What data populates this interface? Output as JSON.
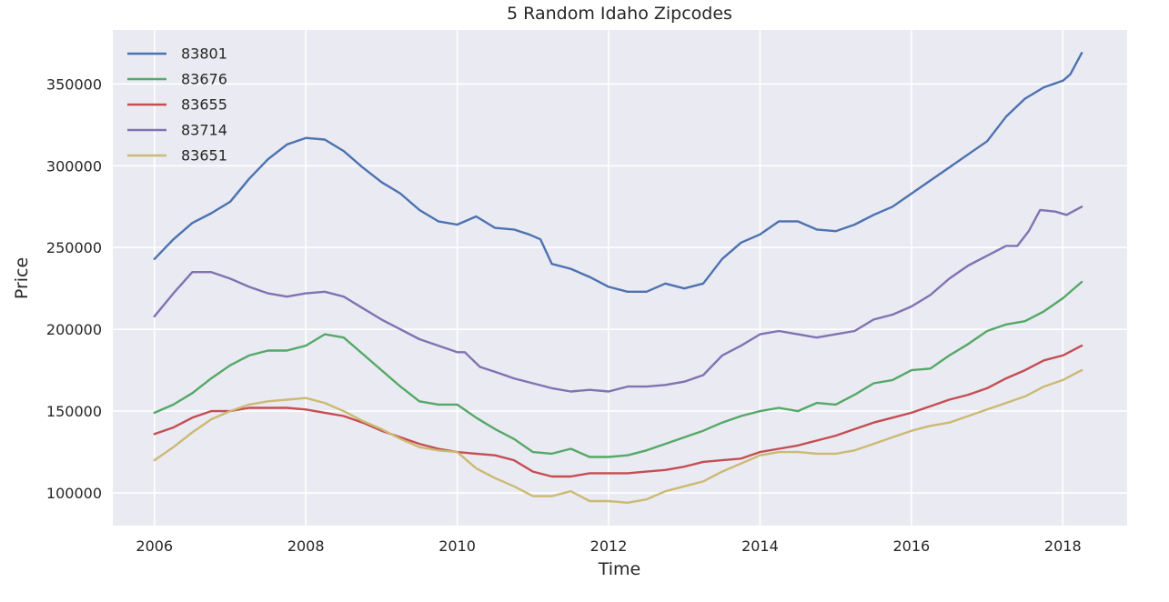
{
  "chart_data": {
    "type": "line",
    "title": "5 Random Idaho Zipcodes",
    "xlabel": "Time",
    "ylabel": "Price",
    "xlim": [
      2005.45,
      2018.85
    ],
    "ylim": [
      80000,
      383000
    ],
    "grid": true,
    "legend_position": "top-left",
    "x_ticks": [
      2006,
      2008,
      2010,
      2012,
      2014,
      2016,
      2018
    ],
    "y_ticks": [
      100000,
      150000,
      200000,
      250000,
      300000,
      350000
    ],
    "series": [
      {
        "name": "83801",
        "color": "#4c72b0",
        "points": [
          [
            2006.0,
            243000
          ],
          [
            2006.25,
            255000
          ],
          [
            2006.5,
            265000
          ],
          [
            2006.75,
            271000
          ],
          [
            2007.0,
            278000
          ],
          [
            2007.25,
            292000
          ],
          [
            2007.5,
            304000
          ],
          [
            2007.75,
            313000
          ],
          [
            2008.0,
            317000
          ],
          [
            2008.25,
            316000
          ],
          [
            2008.5,
            309000
          ],
          [
            2008.75,
            299000
          ],
          [
            2009.0,
            290000
          ],
          [
            2009.25,
            283000
          ],
          [
            2009.5,
            273000
          ],
          [
            2009.75,
            266000
          ],
          [
            2010.0,
            264000
          ],
          [
            2010.25,
            269000
          ],
          [
            2010.5,
            262000
          ],
          [
            2010.75,
            261000
          ],
          [
            2010.95,
            258000
          ],
          [
            2011.1,
            255000
          ],
          [
            2011.25,
            240000
          ],
          [
            2011.5,
            237000
          ],
          [
            2011.75,
            232000
          ],
          [
            2012.0,
            226000
          ],
          [
            2012.25,
            223000
          ],
          [
            2012.5,
            223000
          ],
          [
            2012.75,
            228000
          ],
          [
            2013.0,
            225000
          ],
          [
            2013.25,
            228000
          ],
          [
            2013.5,
            243000
          ],
          [
            2013.75,
            253000
          ],
          [
            2014.0,
            258000
          ],
          [
            2014.25,
            266000
          ],
          [
            2014.5,
            266000
          ],
          [
            2014.75,
            261000
          ],
          [
            2015.0,
            260000
          ],
          [
            2015.25,
            264000
          ],
          [
            2015.5,
            270000
          ],
          [
            2015.75,
            275000
          ],
          [
            2016.0,
            283000
          ],
          [
            2016.25,
            291000
          ],
          [
            2016.5,
            299000
          ],
          [
            2016.75,
            307000
          ],
          [
            2017.0,
            315000
          ],
          [
            2017.25,
            330000
          ],
          [
            2017.5,
            341000
          ],
          [
            2017.75,
            348000
          ],
          [
            2018.0,
            352000
          ],
          [
            2018.1,
            356000
          ],
          [
            2018.25,
            369000
          ]
        ]
      },
      {
        "name": "83676",
        "color": "#55a868",
        "points": [
          [
            2006.0,
            149000
          ],
          [
            2006.25,
            154000
          ],
          [
            2006.5,
            161000
          ],
          [
            2006.75,
            170000
          ],
          [
            2007.0,
            178000
          ],
          [
            2007.25,
            184000
          ],
          [
            2007.5,
            187000
          ],
          [
            2007.75,
            187000
          ],
          [
            2008.0,
            190000
          ],
          [
            2008.25,
            197000
          ],
          [
            2008.5,
            195000
          ],
          [
            2008.75,
            185000
          ],
          [
            2009.0,
            175000
          ],
          [
            2009.25,
            165000
          ],
          [
            2009.5,
            156000
          ],
          [
            2009.75,
            154000
          ],
          [
            2010.0,
            154000
          ],
          [
            2010.25,
            146000
          ],
          [
            2010.5,
            139000
          ],
          [
            2010.75,
            133000
          ],
          [
            2011.0,
            125000
          ],
          [
            2011.25,
            124000
          ],
          [
            2011.5,
            127000
          ],
          [
            2011.75,
            122000
          ],
          [
            2012.0,
            122000
          ],
          [
            2012.25,
            123000
          ],
          [
            2012.5,
            126000
          ],
          [
            2012.75,
            130000
          ],
          [
            2013.0,
            134000
          ],
          [
            2013.25,
            138000
          ],
          [
            2013.5,
            143000
          ],
          [
            2013.75,
            147000
          ],
          [
            2014.0,
            150000
          ],
          [
            2014.25,
            152000
          ],
          [
            2014.5,
            150000
          ],
          [
            2014.75,
            155000
          ],
          [
            2015.0,
            154000
          ],
          [
            2015.25,
            160000
          ],
          [
            2015.5,
            167000
          ],
          [
            2015.75,
            169000
          ],
          [
            2016.0,
            175000
          ],
          [
            2016.25,
            176000
          ],
          [
            2016.5,
            184000
          ],
          [
            2016.75,
            191000
          ],
          [
            2017.0,
            199000
          ],
          [
            2017.25,
            203000
          ],
          [
            2017.5,
            205000
          ],
          [
            2017.75,
            211000
          ],
          [
            2018.0,
            219000
          ],
          [
            2018.25,
            229000
          ]
        ]
      },
      {
        "name": "83655",
        "color": "#c44e52",
        "points": [
          [
            2006.0,
            136000
          ],
          [
            2006.25,
            140000
          ],
          [
            2006.5,
            146000
          ],
          [
            2006.75,
            150000
          ],
          [
            2007.0,
            150000
          ],
          [
            2007.25,
            152000
          ],
          [
            2007.5,
            152000
          ],
          [
            2007.75,
            152000
          ],
          [
            2008.0,
            151000
          ],
          [
            2008.25,
            149000
          ],
          [
            2008.5,
            147000
          ],
          [
            2008.75,
            143000
          ],
          [
            2009.0,
            138000
          ],
          [
            2009.25,
            134000
          ],
          [
            2009.5,
            130000
          ],
          [
            2009.75,
            127000
          ],
          [
            2010.0,
            125000
          ],
          [
            2010.25,
            124000
          ],
          [
            2010.5,
            123000
          ],
          [
            2010.75,
            120000
          ],
          [
            2011.0,
            113000
          ],
          [
            2011.25,
            110000
          ],
          [
            2011.5,
            110000
          ],
          [
            2011.75,
            112000
          ],
          [
            2012.0,
            112000
          ],
          [
            2012.25,
            112000
          ],
          [
            2012.5,
            113000
          ],
          [
            2012.75,
            114000
          ],
          [
            2013.0,
            116000
          ],
          [
            2013.25,
            119000
          ],
          [
            2013.5,
            120000
          ],
          [
            2013.75,
            121000
          ],
          [
            2014.0,
            125000
          ],
          [
            2014.25,
            127000
          ],
          [
            2014.5,
            129000
          ],
          [
            2014.75,
            132000
          ],
          [
            2015.0,
            135000
          ],
          [
            2015.25,
            139000
          ],
          [
            2015.5,
            143000
          ],
          [
            2015.75,
            146000
          ],
          [
            2016.0,
            149000
          ],
          [
            2016.25,
            153000
          ],
          [
            2016.5,
            157000
          ],
          [
            2016.75,
            160000
          ],
          [
            2017.0,
            164000
          ],
          [
            2017.25,
            170000
          ],
          [
            2017.5,
            175000
          ],
          [
            2017.75,
            181000
          ],
          [
            2018.0,
            184000
          ],
          [
            2018.25,
            190000
          ]
        ]
      },
      {
        "name": "83714",
        "color": "#8172b2",
        "points": [
          [
            2006.0,
            208000
          ],
          [
            2006.25,
            222000
          ],
          [
            2006.5,
            235000
          ],
          [
            2006.75,
            235000
          ],
          [
            2007.0,
            231000
          ],
          [
            2007.25,
            226000
          ],
          [
            2007.5,
            222000
          ],
          [
            2007.75,
            220000
          ],
          [
            2008.0,
            222000
          ],
          [
            2008.25,
            223000
          ],
          [
            2008.5,
            220000
          ],
          [
            2008.75,
            213000
          ],
          [
            2009.0,
            206000
          ],
          [
            2009.25,
            200000
          ],
          [
            2009.5,
            194000
          ],
          [
            2009.75,
            190000
          ],
          [
            2010.0,
            186000
          ],
          [
            2010.1,
            186000
          ],
          [
            2010.3,
            177000
          ],
          [
            2010.5,
            174000
          ],
          [
            2010.75,
            170000
          ],
          [
            2011.0,
            167000
          ],
          [
            2011.25,
            164000
          ],
          [
            2011.5,
            162000
          ],
          [
            2011.75,
            163000
          ],
          [
            2012.0,
            162000
          ],
          [
            2012.25,
            165000
          ],
          [
            2012.5,
            165000
          ],
          [
            2012.75,
            166000
          ],
          [
            2013.0,
            168000
          ],
          [
            2013.25,
            172000
          ],
          [
            2013.5,
            184000
          ],
          [
            2013.75,
            190000
          ],
          [
            2014.0,
            197000
          ],
          [
            2014.25,
            199000
          ],
          [
            2014.5,
            197000
          ],
          [
            2014.75,
            195000
          ],
          [
            2015.0,
            197000
          ],
          [
            2015.25,
            199000
          ],
          [
            2015.5,
            206000
          ],
          [
            2015.75,
            209000
          ],
          [
            2016.0,
            214000
          ],
          [
            2016.25,
            221000
          ],
          [
            2016.5,
            231000
          ],
          [
            2016.75,
            239000
          ],
          [
            2017.0,
            245000
          ],
          [
            2017.25,
            251000
          ],
          [
            2017.4,
            251000
          ],
          [
            2017.55,
            260000
          ],
          [
            2017.7,
            273000
          ],
          [
            2017.9,
            272000
          ],
          [
            2018.05,
            270000
          ],
          [
            2018.25,
            275000
          ]
        ]
      },
      {
        "name": "83651",
        "color": "#ccb974",
        "points": [
          [
            2006.0,
            120000
          ],
          [
            2006.25,
            128000
          ],
          [
            2006.5,
            137000
          ],
          [
            2006.75,
            145000
          ],
          [
            2007.0,
            150000
          ],
          [
            2007.25,
            154000
          ],
          [
            2007.5,
            156000
          ],
          [
            2007.75,
            157000
          ],
          [
            2008.0,
            158000
          ],
          [
            2008.25,
            155000
          ],
          [
            2008.5,
            150000
          ],
          [
            2008.75,
            144000
          ],
          [
            2009.0,
            139000
          ],
          [
            2009.25,
            133000
          ],
          [
            2009.5,
            128000
          ],
          [
            2009.75,
            126000
          ],
          [
            2010.0,
            125000
          ],
          [
            2010.25,
            115000
          ],
          [
            2010.5,
            109000
          ],
          [
            2010.75,
            104000
          ],
          [
            2011.0,
            98000
          ],
          [
            2011.25,
            98000
          ],
          [
            2011.5,
            101000
          ],
          [
            2011.75,
            95000
          ],
          [
            2012.0,
            95000
          ],
          [
            2012.25,
            94000
          ],
          [
            2012.5,
            96000
          ],
          [
            2012.75,
            101000
          ],
          [
            2013.0,
            104000
          ],
          [
            2013.25,
            107000
          ],
          [
            2013.5,
            113000
          ],
          [
            2013.75,
            118000
          ],
          [
            2014.0,
            123000
          ],
          [
            2014.25,
            125000
          ],
          [
            2014.5,
            125000
          ],
          [
            2014.75,
            124000
          ],
          [
            2015.0,
            124000
          ],
          [
            2015.25,
            126000
          ],
          [
            2015.5,
            130000
          ],
          [
            2015.75,
            134000
          ],
          [
            2016.0,
            138000
          ],
          [
            2016.25,
            141000
          ],
          [
            2016.5,
            143000
          ],
          [
            2016.75,
            147000
          ],
          [
            2017.0,
            151000
          ],
          [
            2017.25,
            155000
          ],
          [
            2017.5,
            159000
          ],
          [
            2017.75,
            165000
          ],
          [
            2018.0,
            169000
          ],
          [
            2018.25,
            175000
          ]
        ]
      }
    ]
  }
}
